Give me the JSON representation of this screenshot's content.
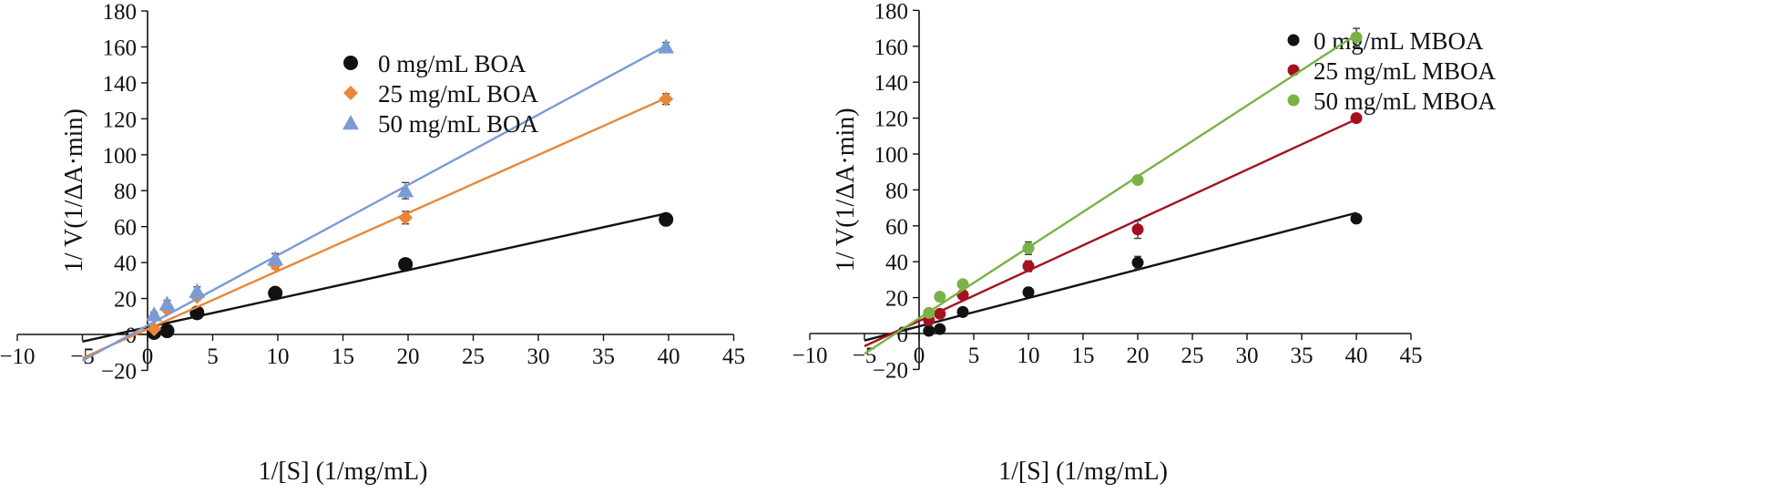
{
  "chart_data": [
    {
      "type": "scatter",
      "title": "",
      "xlabel": "1/[S] (1/mg/mL)",
      "ylabel": "1/ V(1/ΔA·min)",
      "xlim": [
        -10,
        45
      ],
      "ylim": [
        -20,
        180
      ],
      "x_ticks": [
        "−10",
        "−5",
        "0",
        "5",
        "10",
        "15",
        "20",
        "25",
        "30",
        "35",
        "40",
        "45"
      ],
      "y_ticks": [
        "−20",
        "0",
        "20",
        "40",
        "60",
        "80",
        "100",
        "120",
        "140",
        "160",
        "180"
      ],
      "grid": false,
      "legend_position": "top-center",
      "series": [
        {
          "name": "0 mg/mL BOA",
          "marker": "circle",
          "color": "#111111",
          "x": [
            0.5,
            1.5,
            3.8,
            9.8,
            19.8,
            39.8
          ],
          "y": [
            1,
            2,
            12,
            23,
            39,
            64
          ],
          "err": [
            1,
            1,
            1.5,
            2.5,
            3,
            2
          ],
          "fit": {
            "slope": 1.59,
            "intercept": 4
          }
        },
        {
          "name": "25 mg/mL BOA",
          "marker": "diamond",
          "color": "#e8873a",
          "x": [
            0.5,
            1.5,
            3.8,
            9.8,
            19.8,
            39.8
          ],
          "y": [
            3,
            14,
            21,
            39,
            65,
            131
          ],
          "err": [
            1,
            1.5,
            2,
            2.5,
            3.5,
            3
          ],
          "fit": {
            "slope": 3.23,
            "intercept": 3
          }
        },
        {
          "name": "50 mg/mL BOA",
          "marker": "triangle",
          "color": "#7b9bd3",
          "x": [
            0.5,
            1.5,
            3.8,
            9.8,
            19.8,
            39.8
          ],
          "y": [
            11,
            17,
            24,
            42,
            80,
            160
          ],
          "err": [
            1.5,
            2,
            2.5,
            3,
            4.5,
            2.5
          ],
          "fit": {
            "slope": 3.91,
            "intercept": 5
          }
        }
      ]
    },
    {
      "type": "scatter",
      "title": "",
      "xlabel": "1/[S] (1/mg/mL)",
      "ylabel": "1/ V(1/ΔA·min)",
      "xlim": [
        -10,
        45
      ],
      "ylim": [
        -20,
        180
      ],
      "x_ticks": [
        "−10",
        "−5",
        "0",
        "5",
        "10",
        "15",
        "20",
        "25",
        "30",
        "35",
        "40",
        "45"
      ],
      "y_ticks": [
        "−20",
        "0",
        "20",
        "40",
        "60",
        "80",
        "100",
        "120",
        "140",
        "160",
        "180"
      ],
      "grid": false,
      "legend_position": "top-center",
      "series": [
        {
          "name": "0 mg/mL MBOA",
          "marker": "circle",
          "color": "#111111",
          "x": [
            0.9,
            1.9,
            4.0,
            10.0,
            20.0,
            40.0
          ],
          "y": [
            1.5,
            2.5,
            12,
            23,
            39.5,
            64
          ],
          "err": [
            1,
            1,
            1.5,
            2.5,
            3.5,
            1.5
          ],
          "fit": {
            "slope": 1.58,
            "intercept": 4
          }
        },
        {
          "name": "25 mg/mL MBOA",
          "marker": "circle",
          "color": "#a5101e",
          "x": [
            0.9,
            1.9,
            4.0,
            10.0,
            20.0,
            40.0
          ],
          "y": [
            7.5,
            11,
            21.5,
            37.5,
            58,
            120
          ],
          "err": [
            1.5,
            1.5,
            2,
            3,
            5,
            1
          ],
          "fit": {
            "slope": 2.81,
            "intercept": 7
          }
        },
        {
          "name": "50 mg/mL MBOA",
          "marker": "circle",
          "color": "#79b246",
          "x": [
            0.9,
            1.9,
            4.0,
            10.0,
            20.0,
            40.0
          ],
          "y": [
            11.5,
            20.5,
            27.5,
            47.5,
            85.5,
            165
          ],
          "err": [
            1.5,
            1.5,
            2,
            3.5,
            2,
            5
          ],
          "fit": {
            "slope": 3.95,
            "intercept": 8.5
          }
        }
      ]
    }
  ]
}
